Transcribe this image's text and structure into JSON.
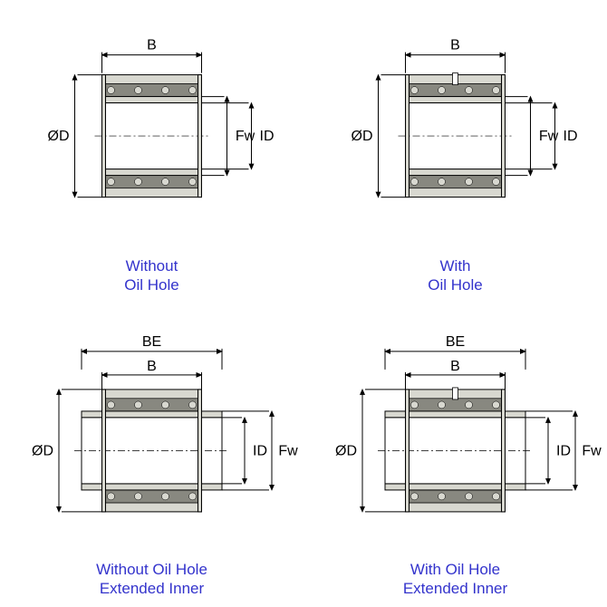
{
  "colors": {
    "line": "#000000",
    "caption": "#3333cc",
    "bearing_fill": "#d8d8d0",
    "bearing_dark": "#888880",
    "bg": "#ffffff"
  },
  "fontsize": {
    "label": 16,
    "caption": 17
  },
  "panels": [
    {
      "id": "top-left",
      "type": "standard",
      "caption": "Without\nOil Hole",
      "labels": {
        "top": "B",
        "left": "ØD",
        "r1": "Fw",
        "r2": "ID"
      },
      "oil_hole": false
    },
    {
      "id": "top-right",
      "type": "standard",
      "caption": "With\nOil Hole",
      "labels": {
        "top": "B",
        "left": "ØD",
        "r1": "Fw",
        "r2": "ID"
      },
      "oil_hole": true
    },
    {
      "id": "bottom-left",
      "type": "extended",
      "caption": "Without Oil Hole\nExtended Inner",
      "labels": {
        "top_outer": "BE",
        "top_inner": "B",
        "left": "ØD",
        "r1": "ID",
        "r2": "Fw"
      },
      "oil_hole": false
    },
    {
      "id": "bottom-right",
      "type": "extended",
      "caption": "With Oil Hole\nExtended Inner",
      "labels": {
        "top_outer": "BE",
        "top_inner": "B",
        "left": "ØD",
        "r1": "ID",
        "r2": "Fw"
      },
      "oil_hole": true
    }
  ]
}
